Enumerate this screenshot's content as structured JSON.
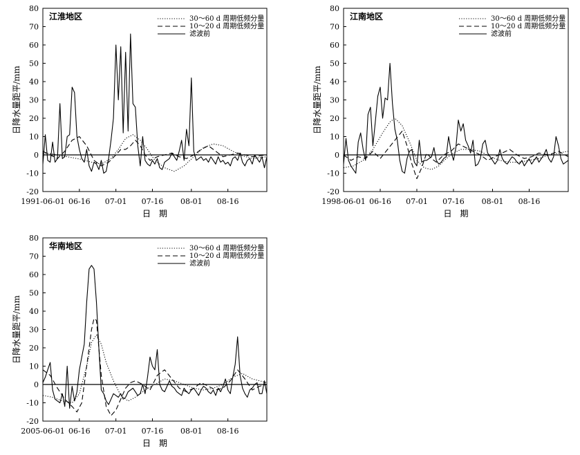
{
  "chart_data": [
    {
      "type": "line",
      "title": "江淮地区",
      "xlabel": "日　期",
      "ylabel": "日降水量距平/mm",
      "ylim": [
        -20,
        80
      ],
      "yticks": [
        -20,
        -10,
        0,
        10,
        20,
        30,
        40,
        50,
        60,
        70,
        80
      ],
      "xlim": [
        0,
        92
      ],
      "xticks": [
        {
          "x": 0,
          "label": "1991-06-01"
        },
        {
          "x": 15,
          "label": "06-16"
        },
        {
          "x": 30,
          "label": "07-01"
        },
        {
          "x": 45,
          "label": "07-16"
        },
        {
          "x": 61,
          "label": "08-01"
        },
        {
          "x": 76,
          "label": "08-16"
        }
      ],
      "legend_position": "top-right",
      "series": [
        {
          "name": "30～60 d 周期低频分量",
          "style": "dotted",
          "x": [
            0,
            4,
            8,
            12,
            16,
            20,
            24,
            28,
            31,
            34,
            37,
            40,
            43,
            46,
            50,
            54,
            58,
            62,
            66,
            70,
            74,
            78,
            82,
            86,
            92
          ],
          "y": [
            1,
            0.5,
            -0.5,
            -1.5,
            -2.5,
            -4,
            -5,
            -2,
            3,
            9,
            11,
            8,
            3,
            -3,
            -7,
            -9,
            -6,
            -1,
            4,
            6,
            5,
            2,
            -0.5,
            -2,
            -1
          ]
        },
        {
          "name": "10～20 d 周期低频分量",
          "style": "dashed",
          "x": [
            0,
            3,
            6,
            9,
            12,
            15,
            18,
            21,
            24,
            27,
            30,
            32,
            34,
            36,
            38,
            40,
            42,
            44,
            47,
            50,
            53,
            56,
            59,
            62,
            65,
            68,
            71,
            74,
            77,
            80,
            83,
            86,
            92
          ],
          "y": [
            2,
            0,
            -2,
            2,
            8,
            10,
            5,
            -3,
            -6,
            -4,
            0,
            3,
            3,
            5,
            8,
            5,
            0,
            -3,
            -1,
            0,
            1,
            -1,
            -2,
            0,
            3,
            5,
            2,
            -1,
            0,
            1,
            0,
            -1,
            0
          ]
        },
        {
          "name": "滤波前",
          "style": "solid",
          "x": [
            0,
            1,
            2,
            3,
            4,
            5,
            6,
            7,
            8,
            9,
            10,
            11,
            12,
            13,
            14,
            15,
            16,
            17,
            18,
            19,
            20,
            21,
            22,
            23,
            24,
            25,
            26,
            27,
            28,
            29,
            30,
            31,
            32,
            33,
            34,
            35,
            36,
            37,
            38,
            39,
            40,
            41,
            42,
            43,
            44,
            45,
            46,
            47,
            48,
            49,
            50,
            51,
            52,
            53,
            54,
            55,
            56,
            57,
            58,
            59,
            60,
            61,
            62,
            63,
            64,
            65,
            66,
            67,
            68,
            69,
            70,
            71,
            72,
            73,
            74,
            75,
            76,
            77,
            78,
            79,
            80,
            81,
            82,
            83,
            84,
            85,
            86,
            87,
            88,
            89,
            90,
            91,
            92
          ],
          "y": [
            -5,
            11,
            -3,
            -4,
            7,
            -4,
            -2,
            28,
            -2,
            -1,
            10,
            11,
            37,
            34,
            10,
            3,
            -2,
            -4,
            3,
            -6,
            -9,
            -4,
            -5,
            -8,
            -3,
            -10,
            -9,
            -2,
            8,
            20,
            60,
            30,
            59,
            12,
            56,
            13,
            66,
            28,
            26,
            5,
            -6,
            10,
            -3,
            -5,
            -6,
            -3,
            -5,
            -2,
            -7,
            -8,
            -4,
            -3,
            -2,
            1,
            -1,
            -3,
            2,
            8,
            -3,
            14,
            5,
            42,
            2,
            -3,
            -2,
            -1,
            -3,
            -2,
            -4,
            -1,
            -3,
            -5,
            -1,
            -4,
            -3,
            -5,
            -4,
            -6,
            -2,
            -1,
            -3,
            1,
            -4,
            -6,
            -3,
            -2,
            -5,
            0,
            -2,
            -4,
            -1,
            -7,
            -1
          ]
        }
      ]
    },
    {
      "type": "line",
      "title": "江南地区",
      "xlabel": "日　期",
      "ylabel": "日降水量距平/mm",
      "ylim": [
        -20,
        80
      ],
      "yticks": [
        -20,
        -10,
        0,
        10,
        20,
        30,
        40,
        50,
        60,
        70,
        80
      ],
      "xlim": [
        0,
        92
      ],
      "xticks": [
        {
          "x": 0,
          "label": "1998-06-01"
        },
        {
          "x": 15,
          "label": "06-16"
        },
        {
          "x": 30,
          "label": "07-01"
        },
        {
          "x": 45,
          "label": "07-16"
        },
        {
          "x": 61,
          "label": "08-01"
        },
        {
          "x": 76,
          "label": "08-16"
        }
      ],
      "legend_position": "top-right",
      "series": [
        {
          "name": "30～60 d 周期低频分量",
          "style": "dotted",
          "x": [
            0,
            4,
            8,
            12,
            16,
            19,
            21,
            24,
            27,
            30,
            33,
            36,
            39,
            42,
            45,
            48,
            52,
            56,
            60,
            64,
            68,
            72,
            76,
            80,
            84,
            88,
            92
          ],
          "y": [
            -7,
            -6,
            -3,
            3,
            12,
            18,
            20,
            16,
            7,
            -3,
            -7,
            -8,
            -6,
            -2,
            1,
            3,
            3,
            2,
            -1,
            -3,
            -4,
            -4,
            -3,
            -2,
            0,
            1,
            2
          ]
        },
        {
          "name": "10～20 d 周期低频分量",
          "style": "dashed",
          "x": [
            0,
            3,
            6,
            9,
            12,
            15,
            18,
            21,
            24,
            26,
            28,
            30,
            32,
            34,
            36,
            38,
            41,
            44,
            47,
            50,
            53,
            56,
            59,
            62,
            65,
            68,
            71,
            74,
            77,
            80,
            84,
            88,
            92
          ],
          "y": [
            0,
            -3,
            -1,
            -2,
            2,
            -2,
            3,
            8,
            13,
            5,
            -5,
            -13,
            -7,
            1,
            -2,
            -4,
            0,
            2,
            6,
            4,
            2,
            0,
            -3,
            -1,
            1,
            3,
            0,
            -2,
            -1,
            1,
            0,
            2,
            -1
          ]
        },
        {
          "name": "滤波前",
          "style": "solid",
          "x": [
            0,
            1,
            2,
            3,
            4,
            5,
            6,
            7,
            8,
            9,
            10,
            11,
            12,
            13,
            14,
            15,
            16,
            17,
            18,
            19,
            20,
            21,
            22,
            23,
            24,
            25,
            26,
            27,
            28,
            29,
            30,
            31,
            32,
            33,
            34,
            35,
            36,
            37,
            38,
            39,
            40,
            41,
            42,
            43,
            44,
            45,
            46,
            47,
            48,
            49,
            50,
            51,
            52,
            53,
            54,
            55,
            56,
            57,
            58,
            59,
            60,
            61,
            62,
            63,
            64,
            65,
            66,
            67,
            68,
            69,
            70,
            71,
            72,
            73,
            74,
            75,
            76,
            77,
            78,
            79,
            80,
            81,
            82,
            83,
            84,
            85,
            86,
            87,
            88,
            89,
            90,
            91,
            92
          ],
          "y": [
            -5,
            9,
            -3,
            -6,
            -8,
            -10,
            7,
            12,
            3,
            -3,
            22,
            26,
            5,
            18,
            32,
            37,
            20,
            31,
            30,
            50,
            28,
            14,
            8,
            -3,
            -9,
            -10,
            -2,
            2,
            3,
            -4,
            -6,
            8,
            -4,
            -3,
            -3,
            -2,
            -1,
            4,
            -3,
            -5,
            -4,
            -2,
            -1,
            10,
            2,
            -3,
            4,
            19,
            13,
            17,
            8,
            5,
            1,
            8,
            -6,
            -5,
            -2,
            6,
            8,
            1,
            -1,
            -3,
            -5,
            -3,
            3,
            -2,
            -4,
            -5,
            -3,
            -1,
            -2,
            -4,
            -5,
            -3,
            -6,
            -4,
            -2,
            -5,
            -3,
            -1,
            -4,
            -2,
            0,
            3,
            -2,
            -4,
            -1,
            10,
            5,
            -2,
            -5,
            -4,
            -3
          ]
        }
      ]
    },
    {
      "type": "line",
      "title": "华南地区",
      "xlabel": "日　期",
      "ylabel": "日降水量距平/mm",
      "ylim": [
        -20,
        80
      ],
      "yticks": [
        -20,
        -10,
        0,
        10,
        20,
        30,
        40,
        50,
        60,
        70,
        80
      ],
      "xlim": [
        0,
        92
      ],
      "xticks": [
        {
          "x": 0,
          "label": "2005-06-01"
        },
        {
          "x": 15,
          "label": "06-16"
        },
        {
          "x": 30,
          "label": "07-01"
        },
        {
          "x": 45,
          "label": "07-16"
        },
        {
          "x": 61,
          "label": "08-01"
        },
        {
          "x": 76,
          "label": "08-16"
        }
      ],
      "legend_position": "top-right",
      "series": [
        {
          "name": "30～60 d 周期低频分量",
          "style": "dotted",
          "x": [
            0,
            4,
            8,
            12,
            15,
            18,
            20,
            22,
            24,
            26,
            29,
            32,
            35,
            38,
            42,
            46,
            50,
            54,
            58,
            62,
            66,
            70,
            74,
            78,
            82,
            86,
            92
          ],
          "y": [
            -6,
            -7,
            -9,
            -10,
            -5,
            10,
            23,
            27,
            22,
            12,
            2,
            -6,
            -9,
            -7,
            -3,
            0,
            3,
            2,
            0,
            -2,
            -3,
            -2,
            0,
            4,
            6,
            3,
            1
          ]
        },
        {
          "name": "10～20 d 周期低频分量",
          "style": "dashed",
          "x": [
            0,
            3,
            6,
            9,
            12,
            14,
            16,
            18,
            20,
            21,
            22,
            23,
            24,
            26,
            28,
            30,
            32,
            34,
            36,
            38,
            41,
            44,
            47,
            50,
            53,
            56,
            59,
            62,
            65,
            68,
            71,
            74,
            77,
            80,
            83,
            86,
            89,
            92
          ],
          "y": [
            8,
            5,
            -2,
            -8,
            -12,
            -15,
            -10,
            10,
            30,
            36,
            35,
            20,
            5,
            -12,
            -17,
            -14,
            -8,
            -2,
            1,
            2,
            0,
            -3,
            5,
            8,
            3,
            -2,
            -4,
            -2,
            1,
            -1,
            -3,
            -2,
            2,
            8,
            3,
            -3,
            -1,
            0
          ]
        },
        {
          "name": "滤波前",
          "style": "solid",
          "x": [
            0,
            1,
            2,
            3,
            4,
            5,
            6,
            7,
            8,
            9,
            10,
            11,
            12,
            13,
            14,
            15,
            16,
            17,
            18,
            19,
            20,
            21,
            22,
            23,
            24,
            25,
            26,
            27,
            28,
            29,
            30,
            31,
            32,
            33,
            34,
            35,
            36,
            37,
            38,
            39,
            40,
            41,
            42,
            43,
            44,
            45,
            46,
            47,
            48,
            49,
            50,
            51,
            52,
            53,
            54,
            55,
            56,
            57,
            58,
            59,
            60,
            61,
            62,
            63,
            64,
            65,
            66,
            67,
            68,
            69,
            70,
            71,
            72,
            73,
            74,
            75,
            76,
            77,
            78,
            79,
            80,
            81,
            82,
            83,
            84,
            85,
            86,
            87,
            88,
            89,
            90,
            91,
            92
          ],
          "y": [
            1,
            4,
            8,
            12,
            -3,
            -8,
            -9,
            -10,
            -5,
            -12,
            10,
            -13,
            -1,
            -9,
            -4,
            8,
            15,
            22,
            45,
            63,
            65,
            63,
            45,
            20,
            -3,
            -5,
            -9,
            -11,
            -8,
            -5,
            -6,
            -7,
            -5,
            -8,
            -7,
            -4,
            -3,
            -2,
            -4,
            -6,
            -5,
            0,
            -5,
            4,
            15,
            10,
            8,
            19,
            0,
            -3,
            -4,
            -1,
            2,
            -1,
            -2,
            -4,
            -5,
            -6,
            -2,
            -4,
            -5,
            -3,
            -2,
            -4,
            -6,
            -3,
            -1,
            -2,
            -4,
            -5,
            -3,
            -6,
            -2,
            -4,
            -1,
            3,
            -3,
            -5,
            4,
            11,
            26,
            5,
            -2,
            -5,
            -7,
            -3,
            -2,
            0,
            1,
            -5,
            -5,
            2,
            -5
          ]
        }
      ]
    }
  ]
}
